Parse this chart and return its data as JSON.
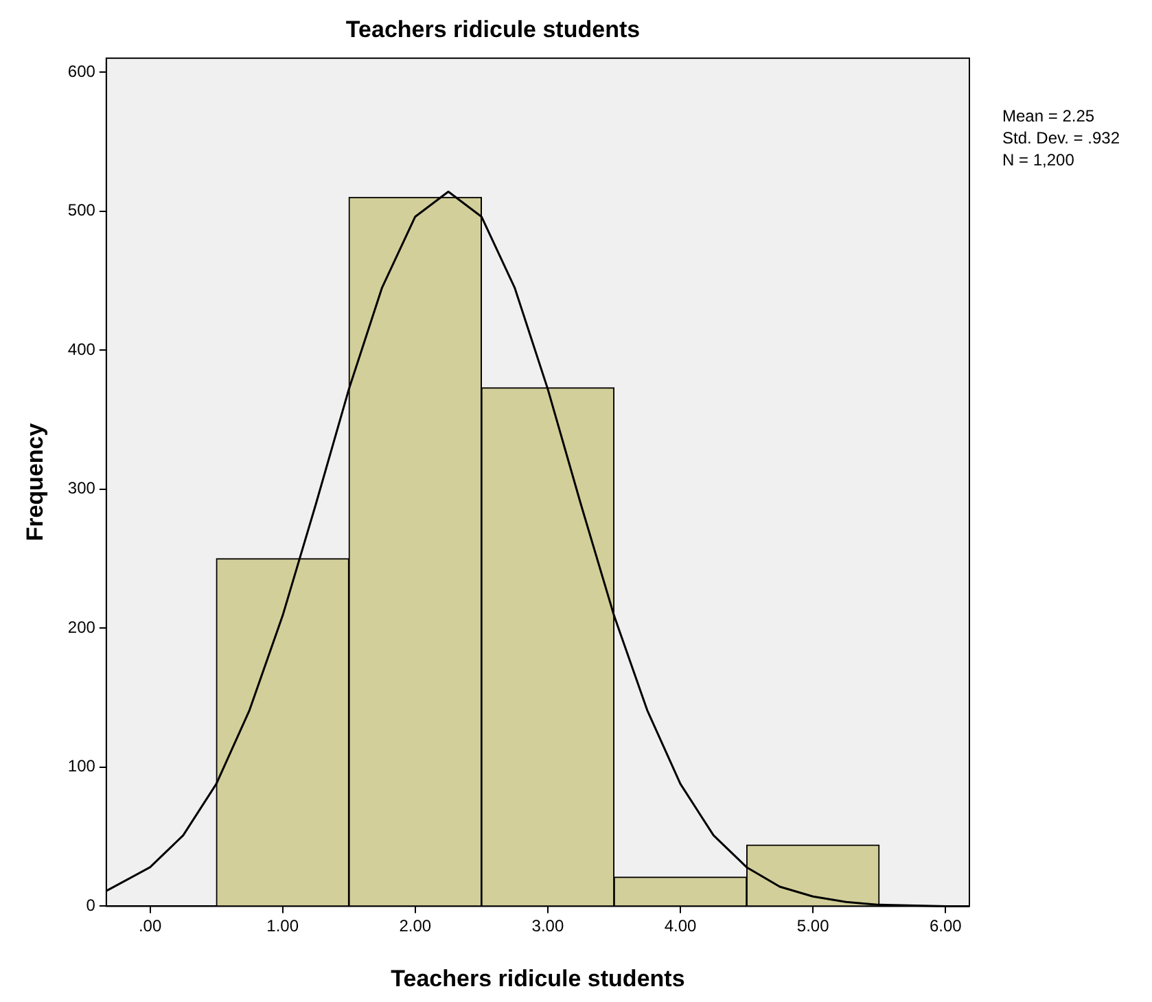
{
  "chart_data": {
    "type": "histogram",
    "title": "Teachers ridicule students",
    "xlabel": "Teachers ridicule students",
    "ylabel": "Frequency",
    "bins": [
      0.5,
      1.5,
      2.5,
      3.5,
      4.5,
      5.5
    ],
    "values": [
      250,
      510,
      373,
      21,
      44
    ],
    "color": "#d3cf9a",
    "series": [
      {
        "type": "line",
        "color": "#000000",
        "x": [
          -0.33,
          0,
          0.25,
          0.5,
          0.75,
          1,
          1.25,
          1.5,
          1.75,
          2,
          2.25,
          2.5,
          2.75,
          3,
          3.25,
          3.5,
          3.75,
          4,
          4.25,
          4.5,
          4.75,
          5,
          5.25,
          5.5,
          6,
          6.18
        ],
        "values": [
          11,
          28,
          51,
          88,
          141,
          209,
          289,
          372,
          445,
          496,
          514,
          496,
          445,
          372,
          289,
          209,
          141,
          88,
          51,
          28,
          14,
          7,
          3,
          1,
          0,
          0
        ]
      }
    ],
    "xlim": [
      -0.33,
      6.18
    ],
    "xticks": [
      {
        "value": 0,
        "label": ".00"
      },
      {
        "value": 1,
        "label": "1.00"
      },
      {
        "value": 2,
        "label": "2.00"
      },
      {
        "value": 3,
        "label": "3.00"
      },
      {
        "value": 4,
        "label": "4.00"
      },
      {
        "value": 5,
        "label": "5.00"
      },
      {
        "value": 6,
        "label": "6.00"
      }
    ],
    "ylim": [
      0,
      610
    ],
    "yticks": [
      0,
      100,
      200,
      300,
      400,
      500,
      600
    ],
    "annotations": [
      "Mean = 2.25",
      "Std. Dev. = .932",
      "N = 1,200"
    ],
    "grid": false,
    "legend": false,
    "marker": "none"
  }
}
